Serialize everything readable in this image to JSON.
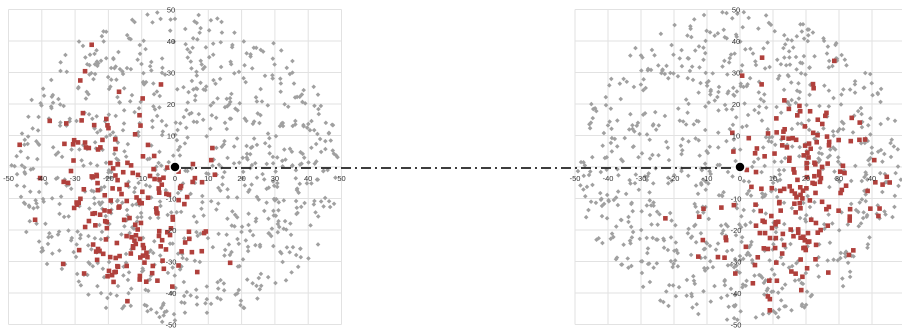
{
  "chart_data": [
    {
      "type": "scatter",
      "name": "",
      "xlim": [
        -50,
        50
      ],
      "ylim": [
        -50,
        50
      ],
      "grid": true,
      "x_ticks": [
        -50,
        -40,
        -30,
        -20,
        -10,
        0,
        10,
        20,
        30,
        40,
        50
      ],
      "y_ticks": [
        -50,
        -40,
        -30,
        -20,
        -10,
        10,
        20,
        30,
        40,
        50
      ],
      "shape": "circle",
      "center_point": {
        "x": 0,
        "y": 0
      },
      "series": [
        {
          "color": "#a0a0a0",
          "marker": "diamond",
          "count": 850
        },
        {
          "color": "#b0403c",
          "marker": "square",
          "count": 190,
          "cluster_centers": [
            [
              -22,
              5
            ],
            [
              -8,
              -12
            ],
            [
              -15,
              -28
            ]
          ]
        }
      ]
    },
    {
      "type": "scatter",
      "name": "",
      "xlim": [
        -50,
        50
      ],
      "ylim": [
        -50,
        50
      ],
      "grid": true,
      "x_ticks": [
        -50,
        -40,
        -30,
        -20,
        -10,
        0,
        10,
        20,
        30,
        40
      ],
      "y_ticks": [
        -50,
        -40,
        -30,
        -20,
        -10,
        10,
        20,
        30,
        40,
        50
      ],
      "shape": "circle",
      "center_point": {
        "x": 0,
        "y": 0
      },
      "series": [
        {
          "color": "#a0a0a0",
          "marker": "diamond",
          "count": 850
        },
        {
          "color": "#b0403c",
          "marker": "square",
          "count": 190,
          "cluster_centers": [
            [
              20,
              10
            ],
            [
              25,
              -10
            ],
            [
              10,
              -25
            ]
          ]
        }
      ]
    }
  ],
  "connector": {
    "style": "dash-dot",
    "color": "#222222"
  }
}
